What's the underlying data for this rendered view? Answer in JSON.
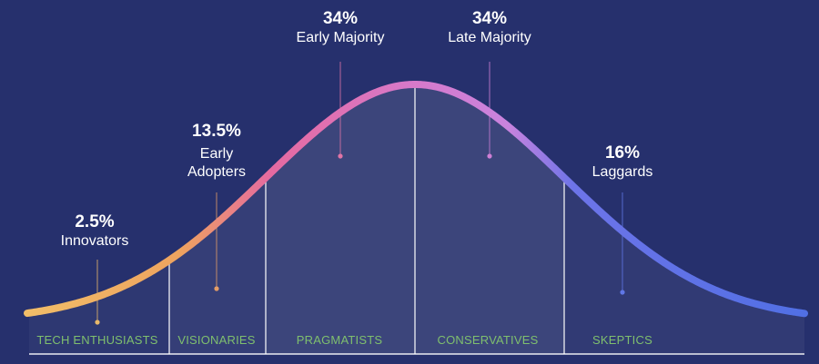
{
  "segments": [
    {
      "percent": "2.5%",
      "name": "Innovators",
      "category": "TECH ENTHUSIASTS"
    },
    {
      "percent": "13.5%",
      "name_lines": [
        "Early",
        "Adopters"
      ],
      "category": "VISIONARIES"
    },
    {
      "percent": "34%",
      "name": "Early Majority",
      "category": "PRAGMATISTS"
    },
    {
      "percent": "34%",
      "name": "Late Majority",
      "category": "CONSERVATIVES"
    },
    {
      "percent": "16%",
      "name": "Laggards",
      "category": "SKEPTICS"
    }
  ],
  "colors": {
    "background": "#26306d",
    "curve_start": "#e6b26a",
    "curve_mid": "#e56aa0",
    "curve_peak": "#d779c9",
    "curve_end": "#5a73e6",
    "category_text": "#7fbf6e"
  }
}
